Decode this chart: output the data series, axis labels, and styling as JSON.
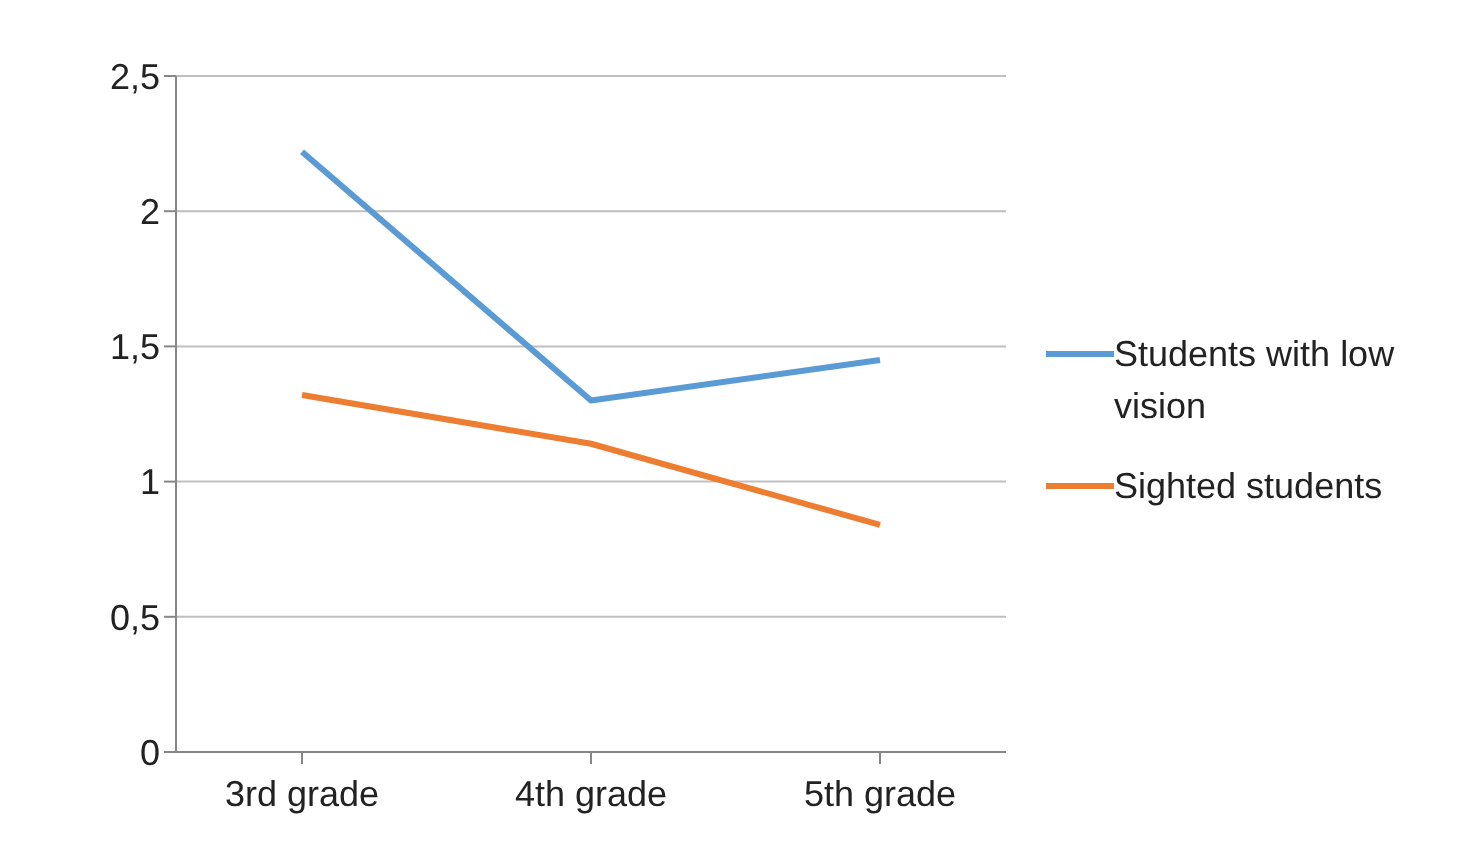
{
  "chart_data": {
    "type": "line",
    "categories": [
      "3rd grade",
      "4th grade",
      "5th grade"
    ],
    "series": [
      {
        "name": "Students with low vision",
        "color": "#5b9bd5",
        "values": [
          2.22,
          1.3,
          1.45
        ]
      },
      {
        "name": "Sighted students",
        "color": "#ed7d31",
        "values": [
          1.32,
          1.14,
          0.84
        ]
      }
    ],
    "ylim": [
      0,
      2.5
    ],
    "yticks": [
      0,
      {
        "value": 0.5,
        "label": "0,5"
      },
      1,
      {
        "value": 1.5,
        "label": "1,5"
      },
      2,
      {
        "value": 2.5,
        "label": "2,5"
      }
    ],
    "grid": "y",
    "legend": "right",
    "marker": "none",
    "line_style": "solid"
  }
}
